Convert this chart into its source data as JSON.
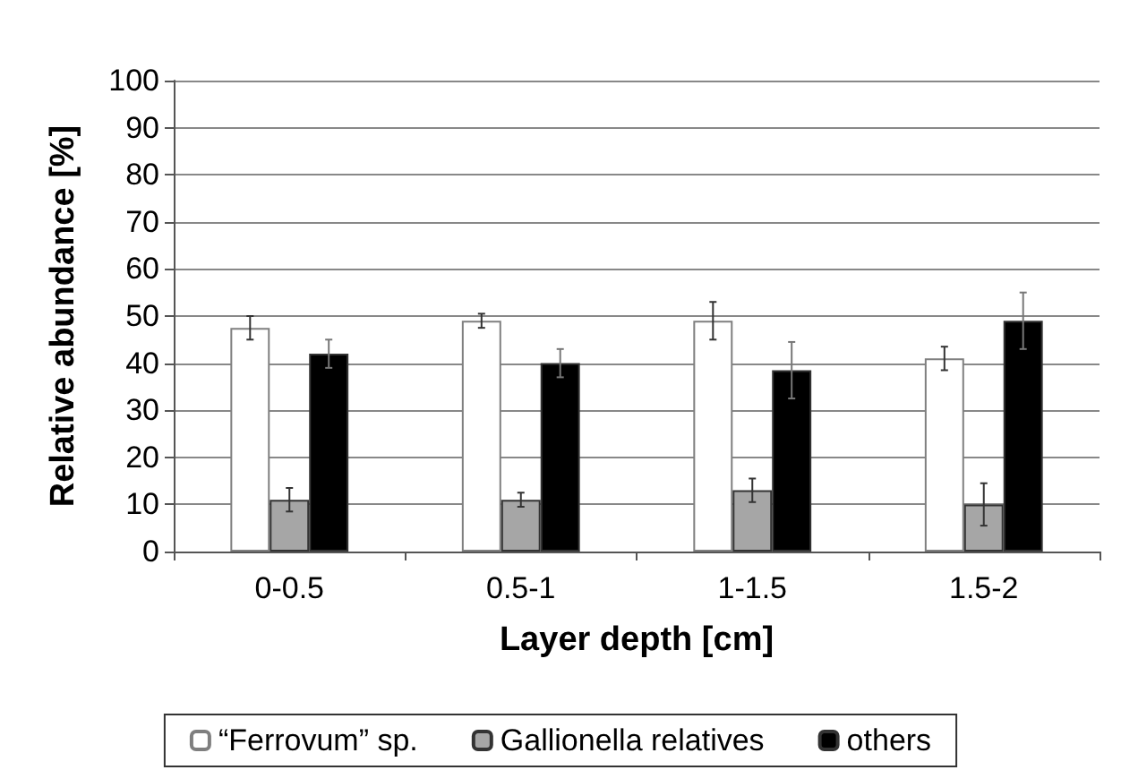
{
  "chart_data": {
    "type": "bar",
    "xlabel": "Layer depth [cm]",
    "ylabel": "Relative abundance [%]",
    "categories": [
      "0-0.5",
      "0.5-1",
      "1-1.5",
      "1.5-2"
    ],
    "series": [
      {
        "name": "“Ferrovum” sp.",
        "color": "#ffffff",
        "values": [
          47.5,
          49,
          49,
          41
        ],
        "errors": [
          2.5,
          1.5,
          4,
          2.5
        ]
      },
      {
        "name": "Gallionella relatives",
        "color": "#a6a6a6",
        "values": [
          11,
          11,
          13,
          10
        ],
        "errors": [
          2.5,
          1.5,
          2.5,
          4.5
        ]
      },
      {
        "name": "others",
        "color": "#000000",
        "values": [
          42,
          40,
          38.5,
          49
        ],
        "errors": [
          3,
          3,
          6,
          6
        ]
      }
    ],
    "ylim": [
      0,
      100
    ],
    "yticks": [
      0,
      10,
      20,
      30,
      40,
      50,
      60,
      70,
      80,
      90,
      100
    ],
    "grid": "y",
    "legend": "bottom"
  }
}
